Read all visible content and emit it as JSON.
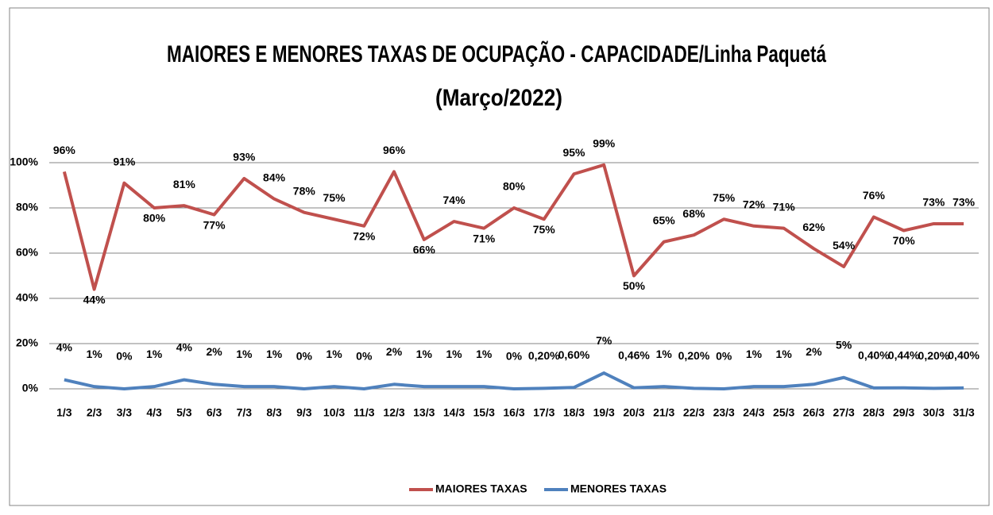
{
  "chart_data": {
    "type": "line",
    "title": "MAIORES E MENORES TAXAS DE OCUPAÇÃO - CAPACIDADE/Linha Paquetá",
    "subtitle": "(Março/2022)",
    "categories": [
      "1/3",
      "2/3",
      "3/3",
      "4/3",
      "5/3",
      "6/3",
      "7/3",
      "8/3",
      "9/3",
      "10/3",
      "11/3",
      "12/3",
      "13/3",
      "14/3",
      "15/3",
      "16/3",
      "17/3",
      "18/3",
      "19/3",
      "20/3",
      "21/3",
      "22/3",
      "23/3",
      "24/3",
      "25/3",
      "26/3",
      "27/3",
      "28/3",
      "29/3",
      "30/3",
      "31/3"
    ],
    "series": [
      {
        "name": "MAIORES TAXAS",
        "color": "#c0504d",
        "values": [
          96,
          44,
          91,
          80,
          81,
          77,
          93,
          84,
          78,
          75,
          72,
          96,
          66,
          74,
          71,
          80,
          75,
          95,
          99,
          50,
          65,
          68,
          75,
          72,
          71,
          62,
          54,
          76,
          70,
          73,
          73
        ],
        "value_labels": [
          "96%",
          "44%",
          "91%",
          "80%",
          "81%",
          "77%",
          "93%",
          "84%",
          "78%",
          "75%",
          "72%",
          "96%",
          "66%",
          "74%",
          "71%",
          "80%",
          "75%",
          "95%",
          "99%",
          "50%",
          "65%",
          "68%",
          "75%",
          "72%",
          "71%",
          "62%",
          "54%",
          "76%",
          "70%",
          "73%",
          "73%"
        ]
      },
      {
        "name": "MENORES TAXAS",
        "color": "#4f81bd",
        "values": [
          4,
          1,
          0,
          1,
          4,
          2,
          1,
          1,
          0,
          1,
          0,
          2,
          1,
          1,
          1,
          0,
          0.2,
          0.6,
          7,
          0.46,
          1,
          0.2,
          0,
          1,
          1,
          2,
          5,
          0.4,
          0.44,
          0.2,
          0.4
        ],
        "value_labels": [
          "4%",
          "1%",
          "0%",
          "1%",
          "4%",
          "2%",
          "1%",
          "1%",
          "0%",
          "1%",
          "0%",
          "2%",
          "1%",
          "1%",
          "1%",
          "0%",
          "0,20%",
          "0,60%",
          "7%",
          "0,46%",
          "1%",
          "0,20%",
          "0%",
          "1%",
          "1%",
          "2%",
          "5%",
          "0,40%",
          "0,44%",
          "0,20%",
          "0,40%"
        ]
      }
    ],
    "ylim": [
      0,
      100
    ],
    "yticks": [
      {
        "value": 0,
        "label": "0%"
      },
      {
        "value": 20,
        "label": "20%"
      },
      {
        "value": 40,
        "label": "40%"
      },
      {
        "value": 60,
        "label": "60%"
      },
      {
        "value": 80,
        "label": "80%"
      },
      {
        "value": 100,
        "label": "100%"
      }
    ],
    "grid": true,
    "legend": "bottom"
  }
}
